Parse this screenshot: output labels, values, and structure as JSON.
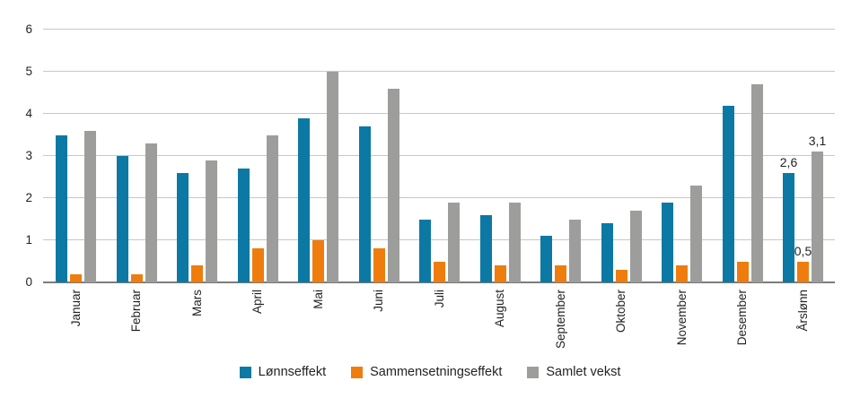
{
  "chart_data": {
    "type": "bar",
    "title": "",
    "xlabel": "",
    "ylabel": "",
    "ylim": [
      0,
      6
    ],
    "yticks": [
      0,
      1,
      2,
      3,
      4,
      5,
      6
    ],
    "grid": true,
    "legend_position": "bottom",
    "background": "#ffffff",
    "gridline_color": "#c7c7c7",
    "baseline_color": "#7c7c7c",
    "text_color": "#232323",
    "categories": [
      "Januar",
      "Februar",
      "Mars",
      "April",
      "Mai",
      "Juni",
      "Juli",
      "August",
      "September",
      "Oktober",
      "November",
      "Desember",
      "Årslønn"
    ],
    "series": [
      {
        "name": "Lønnseffekt",
        "color": "#0b79a3",
        "values": [
          3.5,
          3.0,
          2.6,
          2.7,
          3.9,
          3.7,
          1.5,
          1.6,
          1.1,
          1.4,
          1.9,
          4.2,
          2.6
        ]
      },
      {
        "name": "Sammensetningseffekt",
        "color": "#ee7d0e",
        "values": [
          0.2,
          0.2,
          0.4,
          0.8,
          1.0,
          0.8,
          0.5,
          0.4,
          0.4,
          0.3,
          0.4,
          0.5,
          0.5
        ]
      },
      {
        "name": "Samlet vekst",
        "color": "#9d9d9c",
        "values": [
          3.6,
          3.3,
          2.9,
          3.5,
          5.0,
          4.6,
          1.9,
          1.9,
          1.5,
          1.7,
          2.3,
          4.7,
          3.1
        ]
      }
    ],
    "annotations": [
      {
        "category": "Årslønn",
        "series": "Lønnseffekt",
        "text": "2,6"
      },
      {
        "category": "Årslønn",
        "series": "Sammensetningseffekt",
        "text": "0,5"
      },
      {
        "category": "Årslønn",
        "series": "Samlet vekst",
        "text": "3,1"
      }
    ]
  }
}
